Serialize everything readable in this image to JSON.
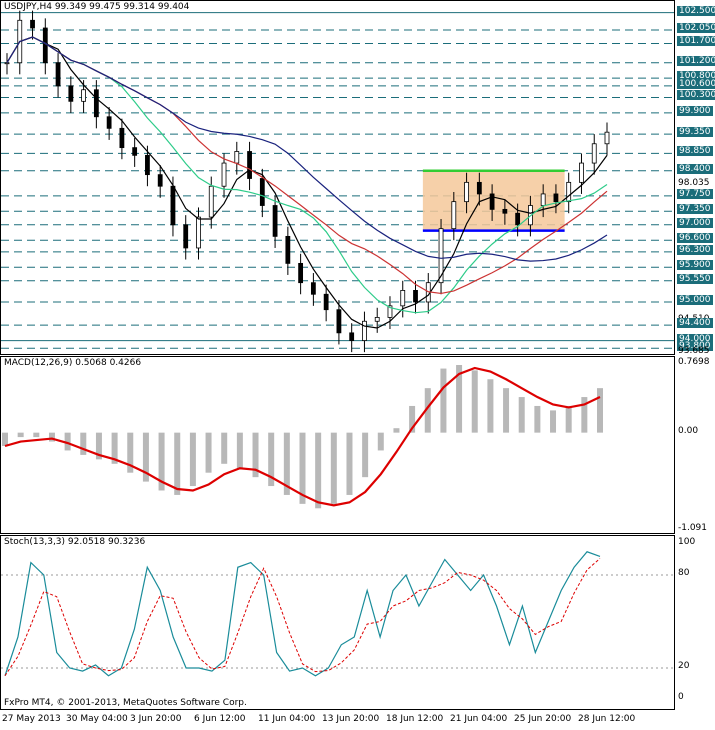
{
  "price_pane": {
    "header": "USDJPY,H4  99.349 99.475 99.314 99.404",
    "current_price": "99.350",
    "price_min": 93.6,
    "price_max": 102.8,
    "levels": [
      {
        "label": "102.500",
        "value": 102.5,
        "boxed": true
      },
      {
        "label": "102.050",
        "value": 102.05,
        "boxed": true
      },
      {
        "label": "101.700",
        "value": 101.7,
        "boxed": true
      },
      {
        "label": "101.200",
        "value": 101.2,
        "boxed": true
      },
      {
        "label": "100.800",
        "value": 100.8,
        "boxed": true
      },
      {
        "label": "100.600",
        "value": 100.6,
        "boxed": true
      },
      {
        "label": "100.300",
        "value": 100.3,
        "boxed": true
      },
      {
        "label": "99.900",
        "value": 99.9,
        "boxed": true
      },
      {
        "label": "99.350",
        "value": 99.35,
        "boxed": true
      },
      {
        "label": "98.850",
        "value": 98.85,
        "boxed": true
      },
      {
        "label": "98.400",
        "value": 98.4,
        "boxed": true
      },
      {
        "label": "98.035",
        "value": 98.035,
        "boxed": false
      },
      {
        "label": "97.750",
        "value": 97.75,
        "boxed": true
      },
      {
        "label": "97.350",
        "value": 97.35,
        "boxed": true
      },
      {
        "label": "97.000",
        "value": 97.0,
        "boxed": true
      },
      {
        "label": "96.600",
        "value": 96.6,
        "boxed": true
      },
      {
        "label": "96.300",
        "value": 96.3,
        "boxed": true
      },
      {
        "label": "95.900",
        "value": 95.9,
        "boxed": true
      },
      {
        "label": "95.550",
        "value": 95.55,
        "boxed": true
      },
      {
        "label": "95.000",
        "value": 95.0,
        "boxed": true
      },
      {
        "label": "94.510",
        "value": 94.51,
        "boxed": false
      },
      {
        "label": "94.400",
        "value": 94.4,
        "boxed": true
      },
      {
        "label": "94.000",
        "value": 94.0,
        "boxed": true
      },
      {
        "label": "93.800",
        "value": 93.8,
        "boxed": true
      },
      {
        "label": "93.685",
        "value": 93.685,
        "boxed": false
      }
    ],
    "range_box": {
      "x_start": 0.625,
      "x_end": 0.835,
      "top": 98.4,
      "bottom": 96.85,
      "fill": "#f5c89a"
    },
    "range_top_line": {
      "color": "#33cc33",
      "value": 98.4
    },
    "range_bottom_line": {
      "color": "#0000ff",
      "value": 96.85
    },
    "colors": {
      "level_line": "#1b6d7a",
      "ma_fast": "#000000",
      "ma_mid": "#2ecc8a",
      "ma_slow": "#cc3333",
      "ma_long": "#1a237e",
      "candle": "#000000"
    }
  },
  "macd_pane": {
    "header": "MACD(12,26,9) 0.5068 0.4266",
    "levels": [
      {
        "label": "0.7698",
        "value": 0.7698
      },
      {
        "label": "0.00",
        "value": 0.0
      },
      {
        "label": "-1.091",
        "value": -1.091
      }
    ],
    "colors": {
      "histogram": "#b8b8b8",
      "signal": "#dd0000"
    }
  },
  "stoch_pane": {
    "header": "Stoch(13,3,3) 92.0518 90.3236",
    "levels": [
      {
        "label": "100",
        "value": 100
      },
      {
        "label": "80",
        "value": 80
      },
      {
        "label": "20",
        "value": 20
      },
      {
        "label": "0",
        "value": 0
      }
    ],
    "colors": {
      "main": "#1a8c9a",
      "signal": "#dd0000"
    }
  },
  "footer": {
    "copyright": "FxPro MT4, © 2001-2013, MetaQuotes Software Corp."
  },
  "x_axis": {
    "labels": [
      "27 May 2013",
      "30 May 04:00",
      "3 Jun 20:00",
      "6 Jun 12:00",
      "11 Jun 04:00",
      "13 Jun 20:00",
      "18 Jun 12:00",
      "21 Jun 04:00",
      "25 Jun 20:00",
      "28 Jun 12:00"
    ]
  },
  "chart_data": {
    "type": "line",
    "title": "USDJPY,H4",
    "series": [
      {
        "name": "USDJPY",
        "values": [
          101.2,
          102.3,
          102.1,
          101.2,
          100.6,
          100.2,
          100.5,
          99.8,
          99.5,
          99.0,
          98.8,
          98.3,
          98.0,
          97.0,
          96.4,
          97.2,
          98.0,
          98.6,
          98.9,
          98.2,
          97.5,
          96.7,
          96.0,
          95.5,
          95.2,
          94.8,
          94.2,
          94.0,
          94.5,
          94.6,
          94.9,
          95.3,
          95.0,
          95.5,
          96.9,
          97.6,
          98.1,
          97.8,
          97.4,
          97.3,
          97.0,
          97.5,
          97.8,
          97.6,
          98.1,
          98.6,
          99.1,
          99.4
        ]
      },
      {
        "name": "MACD",
        "values": [
          -0.15,
          -0.05,
          -0.05,
          -0.1,
          -0.2,
          -0.25,
          -0.3,
          -0.35,
          -0.45,
          -0.55,
          -0.65,
          -0.7,
          -0.6,
          -0.45,
          -0.35,
          -0.4,
          -0.5,
          -0.6,
          -0.7,
          -0.8,
          -0.85,
          -0.8,
          -0.7,
          -0.5,
          -0.2,
          0.05,
          0.3,
          0.5,
          0.72,
          0.76,
          0.7,
          0.6,
          0.5,
          0.4,
          0.3,
          0.25,
          0.3,
          0.4,
          0.5
        ]
      },
      {
        "name": "Stoch",
        "values": [
          15,
          40,
          88,
          80,
          30,
          20,
          18,
          22,
          15,
          20,
          45,
          85,
          70,
          40,
          20,
          20,
          18,
          25,
          85,
          88,
          80,
          30,
          18,
          20,
          15,
          20,
          35,
          40,
          70,
          40,
          70,
          80,
          60,
          75,
          90,
          80,
          70,
          80,
          60,
          35,
          60,
          30,
          50,
          70,
          85,
          95,
          92
        ]
      }
    ]
  }
}
